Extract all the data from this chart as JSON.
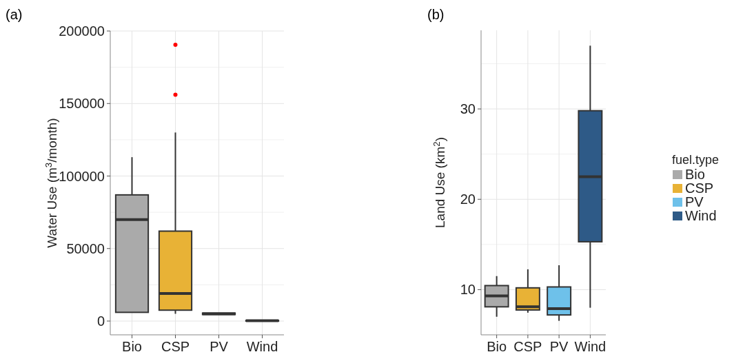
{
  "chart_data": [
    {
      "type": "box",
      "title": "(a)",
      "ylabel": "Water Use   (m$^{3}$/month)",
      "categories": [
        "Bio",
        "CSP",
        "PV",
        "Wind"
      ],
      "colors": [
        "#aaaaaa",
        "#e8b236",
        "#6ec1ea",
        "#2e5a87"
      ],
      "boxes": [
        {
          "low": 6000,
          "q1": 6000,
          "median": 70000,
          "q3": 87000,
          "high": 113000
        },
        {
          "low": 5000,
          "q1": 7500,
          "median": 19000,
          "q3": 62000,
          "high": 130000,
          "outliers": [
            156000,
            190500
          ]
        },
        {
          "low": 4500,
          "q1": 4500,
          "median": 5000,
          "q3": 5500,
          "high": 5500
        },
        {
          "low": 0,
          "q1": 0,
          "median": 200,
          "q3": 400,
          "high": 600
        }
      ],
      "ylim": [
        -9500,
        200000
      ],
      "yticks": [
        0,
        50000,
        100000,
        150000,
        200000
      ],
      "grid": true
    },
    {
      "type": "box",
      "title": "(b)",
      "ylabel": "Land Use (km$^{2}$)",
      "legend_title": "fuel.type",
      "categories": [
        "Bio",
        "CSP",
        "PV",
        "Wind"
      ],
      "series": [
        {
          "name": "Bio",
          "color": "#aaaaaa",
          "boxes": [
            {
              "low": 7.0,
              "q1": 8.1,
              "median": 9.3,
              "q3": 10.45,
              "high": 11.5
            },
            null,
            null,
            null
          ]
        },
        {
          "name": "CSP",
          "color": "#e8b236",
          "boxes": [
            null,
            {
              "low": 7.45,
              "q1": 7.75,
              "median": 8.1,
              "q3": 10.2,
              "high": 12.25
            },
            null,
            null
          ]
        },
        {
          "name": "PV",
          "color": "#6ec1ea",
          "boxes": [
            null,
            null,
            {
              "low": 6.55,
              "q1": 7.2,
              "median": 7.9,
              "q3": 10.3,
              "high": 12.7
            },
            null
          ]
        },
        {
          "name": "Wind",
          "color": "#2e5a87",
          "boxes": [
            null,
            null,
            null,
            {
              "low": 8.0,
              "q1": 15.3,
              "median": 22.5,
              "q3": 29.8,
              "high": 37.0
            }
          ]
        }
      ],
      "ylim": [
        5,
        38.7
      ],
      "yticks": [
        10,
        20,
        30
      ],
      "grid": true,
      "legend": "right"
    }
  ]
}
